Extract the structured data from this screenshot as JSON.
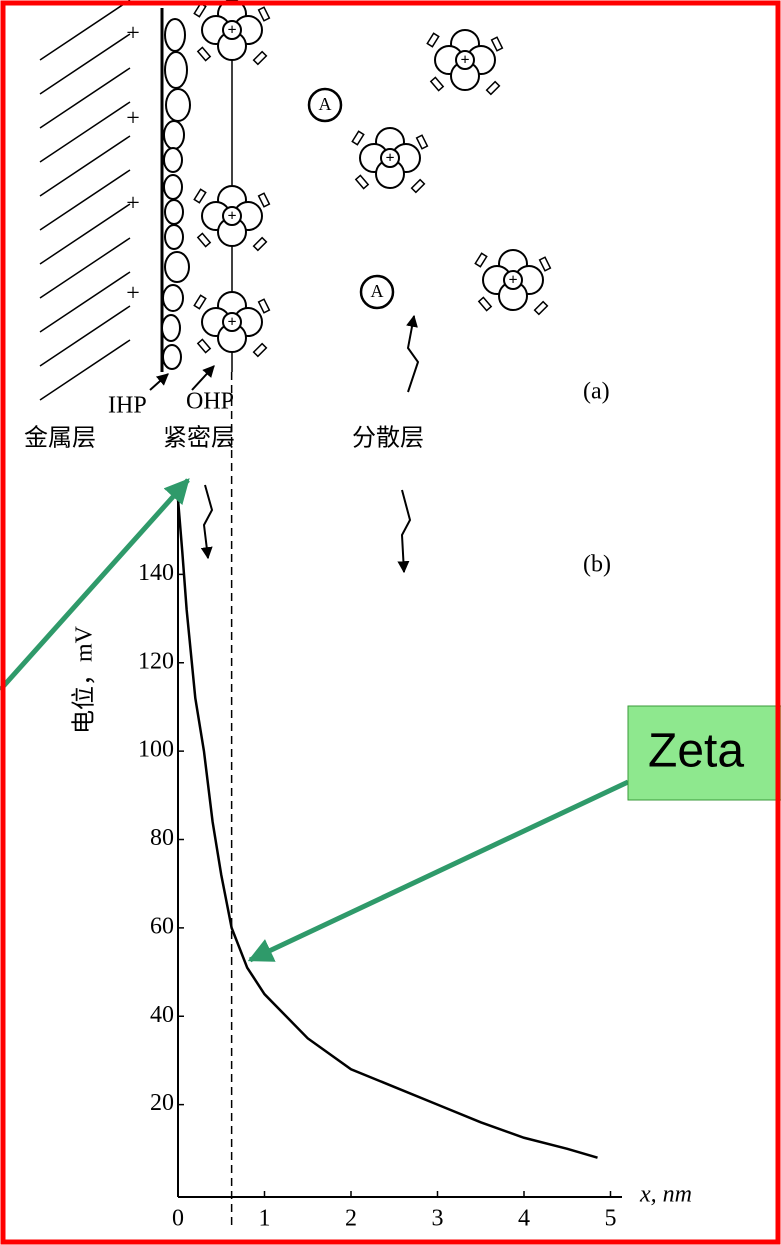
{
  "diagram": {
    "charge": "+",
    "anion": "A",
    "ihp": "IHP",
    "ohp": "OHP",
    "metal_layer": "金属层",
    "compact_layer": "紧密层",
    "diffuse_layer": "分散层",
    "panel_a": "(a)",
    "panel_b": "(b)",
    "zeta_label": "Zeta"
  },
  "chart_data": {
    "type": "line",
    "x_label": "x, nm",
    "y_label": "电位，mV",
    "x": [
      0,
      0.05,
      0.1,
      0.2,
      0.3,
      0.4,
      0.5,
      0.62,
      0.8,
      1,
      1.5,
      2,
      2.5,
      3,
      3.5,
      4,
      4.5,
      4.85
    ],
    "series": [
      {
        "color": "#000000",
        "values": [
          157,
          145,
          132,
          112,
          100,
          84,
          72,
          60,
          51,
          45,
          35,
          28,
          24,
          20,
          16,
          12.5,
          10,
          8
        ]
      }
    ],
    "xlim": [
      0,
      5
    ],
    "ylim": [
      0,
      160
    ],
    "xticks": [
      0,
      1,
      2,
      3,
      4,
      5
    ],
    "yticks": [
      20,
      40,
      60,
      80,
      100,
      120,
      140
    ],
    "ohp_x": 0.62
  }
}
